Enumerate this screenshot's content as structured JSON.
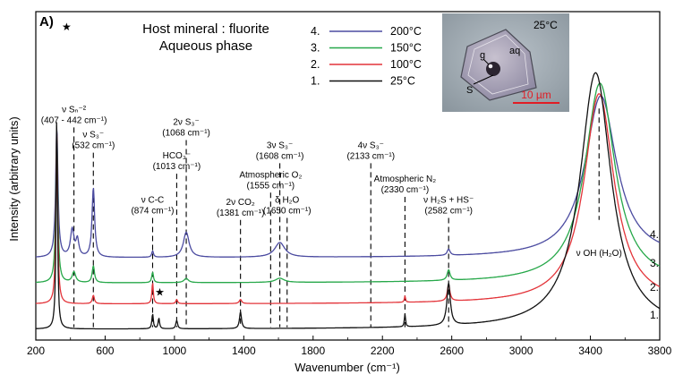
{
  "chart_data": {
    "type": "line",
    "panel_label": "A)",
    "header_line1": "Host mineral : fluorite",
    "header_line2": "Aqueous phase",
    "xlabel": "Wavenumber (cm⁻¹)",
    "ylabel": "Intensity (arbitrary units)",
    "xlim": [
      200,
      3800
    ],
    "x_ticks": [
      "200",
      "600",
      "1000",
      "1400",
      "1800",
      "2200",
      "2600",
      "3000",
      "3400",
      "3800"
    ],
    "x_tick_values": [
      200,
      600,
      1000,
      1400,
      1800,
      2200,
      2600,
      3000,
      3400,
      3800
    ],
    "grid": false,
    "legend_position": "top-center",
    "legend": [
      {
        "num": "4.",
        "label": "200°C",
        "color": "#4b4ba0"
      },
      {
        "num": "3.",
        "label": "150°C",
        "color": "#27a84a"
      },
      {
        "num": "2.",
        "label": "100°C",
        "color": "#e3343a"
      },
      {
        "num": "1.",
        "label": "25°C",
        "color": "#111111"
      }
    ],
    "curve_labels": [
      "4.",
      "3.",
      "2.",
      "1."
    ],
    "series": [
      {
        "name": "200°C",
        "color": "#4b4ba0",
        "offset": 0.34,
        "peaks": [
          [
            321,
            0.62,
            8
          ],
          [
            410,
            0.13,
            12
          ],
          [
            440,
            0.08,
            10
          ],
          [
            532,
            0.33,
            9
          ],
          [
            874,
            0.03,
            6
          ],
          [
            1068,
            0.12,
            20
          ],
          [
            1608,
            0.07,
            35
          ],
          [
            2582,
            0.03,
            10
          ],
          [
            3460,
            0.77,
            110
          ]
        ]
      },
      {
        "name": "150°C",
        "color": "#27a84a",
        "offset": 0.22,
        "peaks": [
          [
            321,
            0.72,
            7
          ],
          [
            420,
            0.05,
            12
          ],
          [
            532,
            0.08,
            8
          ],
          [
            874,
            0.05,
            6
          ],
          [
            1068,
            0.02,
            15
          ],
          [
            1608,
            0.02,
            30
          ],
          [
            2582,
            0.05,
            10
          ],
          [
            3455,
            0.95,
            105
          ]
        ]
      },
      {
        "name": "100°C",
        "color": "#e3343a",
        "offset": 0.12,
        "peaks": [
          [
            321,
            0.85,
            6
          ],
          [
            532,
            0.04,
            7
          ],
          [
            874,
            0.1,
            5
          ],
          [
            1013,
            0.02,
            6
          ],
          [
            1381,
            0.02,
            8
          ],
          [
            2330,
            0.03,
            4
          ],
          [
            2582,
            0.08,
            9
          ],
          [
            3450,
            1.0,
            105
          ]
        ]
      },
      {
        "name": "25°C",
        "color": "#111111",
        "offset": 0.0,
        "peaks": [
          [
            321,
            1.02,
            5
          ],
          [
            874,
            0.07,
            5
          ],
          [
            910,
            0.05,
            5
          ],
          [
            1013,
            0.04,
            6
          ],
          [
            1381,
            0.08,
            7
          ],
          [
            2330,
            0.06,
            4
          ],
          [
            2582,
            0.2,
            12
          ],
          [
            3430,
            1.22,
            110
          ]
        ]
      }
    ],
    "annotations": [
      {
        "x": 420,
        "lines": [
          "ν Sₙ⁻²",
          "(407 - 442 cm⁻¹)"
        ],
        "dashed_from": 0.96
      },
      {
        "x": 532,
        "lines": [
          "ν S₃⁻",
          "(532 cm⁻¹)"
        ],
        "dashed_from": 0.84
      },
      {
        "x": 874,
        "lines": [
          "ν C-C",
          "(874 cm⁻¹)"
        ],
        "dashed_from": 0.53
      },
      {
        "x": 1013,
        "lines": [
          "HCO₃⁻",
          "(1013 cm⁻¹)"
        ],
        "dashed_from": 0.74
      },
      {
        "x": 1068,
        "lines": [
          "2ν S₃⁻",
          "(1068 cm⁻¹)"
        ],
        "dashed_from": 0.9
      },
      {
        "x": 1381,
        "lines": [
          "2ν CO₂",
          "(1381 cm⁻¹)"
        ],
        "dashed_from": 0.52
      },
      {
        "x": 1555,
        "lines": [
          "Atmospheric O₂",
          "(1555 cm⁻¹)"
        ],
        "dashed_from": 0.65
      },
      {
        "x": 1608,
        "lines": [
          "3ν S₃⁻",
          "(1608 cm⁻¹)"
        ],
        "dashed_from": 0.79
      },
      {
        "x": 1650,
        "lines": [
          "δ H₂O",
          "(1650 cm⁻¹)"
        ],
        "dashed_from": 0.53
      },
      {
        "x": 2133,
        "lines": [
          "4ν S₃⁻",
          "(2133 cm⁻¹)"
        ],
        "dashed_from": 0.79
      },
      {
        "x": 2330,
        "lines": [
          "Atmospheric N₂",
          "(2330 cm⁻¹)"
        ],
        "dashed_from": 0.63
      },
      {
        "x": 2582,
        "lines": [
          "ν H₂S + HS⁻",
          "(2582 cm⁻¹)"
        ],
        "dashed_from": 0.53
      },
      {
        "x": 3450,
        "lines": [
          "ν OH (H₂O)"
        ],
        "dashed_from": 0.0,
        "below": true
      }
    ],
    "star_markers": [
      321,
      910
    ],
    "inset": {
      "temperature": "25°C",
      "label_g": "g",
      "label_aq": "aq",
      "label_s": "S",
      "scale_label": "10 µm"
    }
  }
}
